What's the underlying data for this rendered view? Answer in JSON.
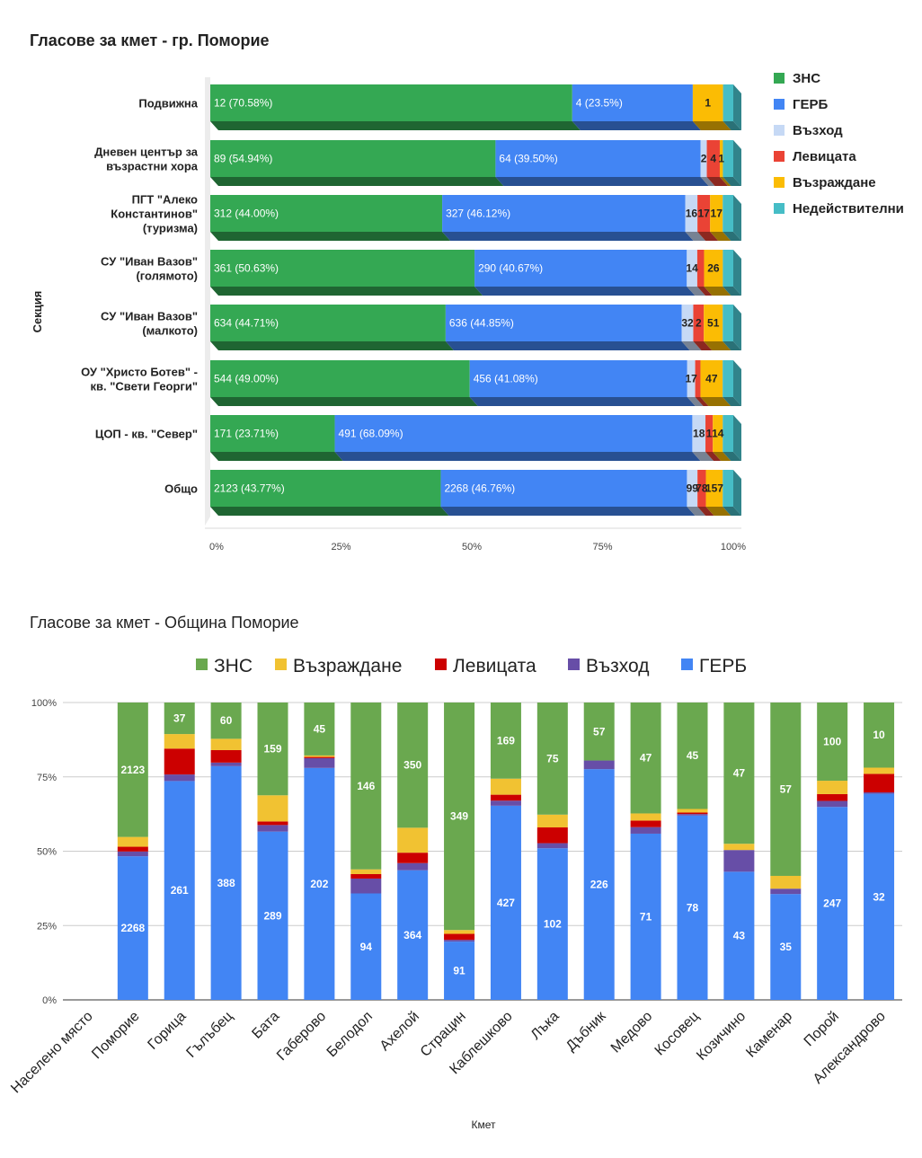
{
  "charts": {
    "top": {
      "title": "Гласове за кмет - гр. Поморие",
      "ylabel": "Секция"
    },
    "bottom": {
      "title": "Гласове за кмет - Община Поморие",
      "xlabel": "Кмет"
    }
  },
  "chart_data": [
    {
      "type": "bar",
      "orientation": "horizontal",
      "stacked": "percent",
      "effect": "3d",
      "title": "Гласове за кмет - гр. Поморие",
      "xlabel": "",
      "ylabel": "Секция",
      "xlim": [
        0,
        100
      ],
      "x_ticks": [
        "0%",
        "25%",
        "50%",
        "75%",
        "100%"
      ],
      "legend_position": "right",
      "categories": [
        [
          "Подвижна"
        ],
        [
          "Дневен център за",
          "възрастни хора"
        ],
        [
          "ПГТ \"Алеко",
          "Константинов\"",
          "(туризма)"
        ],
        [
          "СУ \"Иван Вазов\"",
          "(голямото)"
        ],
        [
          "СУ \"Иван Вазов\"",
          "(малкото)"
        ],
        [
          "ОУ \"Христо Ботев\" -",
          "кв. \"Свети Георги\""
        ],
        [
          "ЦОП - кв. \"Север\""
        ],
        [
          "Общо"
        ]
      ],
      "series": [
        {
          "name": "ЗНС",
          "color": "#34a853",
          "values": [
            70.58,
            54.94,
            44.0,
            50.63,
            44.71,
            49.0,
            23.71,
            43.77
          ],
          "labels": [
            "12  (70.58%)",
            "89 (54.94%)",
            "312 (44.00%)",
            "361 (50.63%)",
            "634 (44.71%)",
            "544 (49.00%)",
            "171 (23.71%)",
            "2123 (43.77%)"
          ]
        },
        {
          "name": "ГЕРБ",
          "color": "#4285f4",
          "values": [
            23.5,
            39.5,
            46.12,
            40.67,
            44.85,
            41.08,
            68.09,
            46.76
          ],
          "labels": [
            "4 (23.5%)",
            "64 (39.50%)",
            "327 (46.12%)",
            "290 (40.67%)",
            "636 (44.85%)",
            "456 (41.08%)",
            "491 (68.09%)",
            "2268 (46.76%)"
          ]
        },
        {
          "name": "Възход",
          "color": "#c6d9f5",
          "values": [
            0,
            1.2,
            2.3,
            2.0,
            2.2,
            1.5,
            2.5,
            2.0
          ],
          "labels": [
            "",
            "2",
            "16",
            "14",
            "32",
            "17",
            "18",
            "99"
          ]
        },
        {
          "name": "Левицата",
          "color": "#ea4335",
          "values": [
            0,
            2.5,
            2.4,
            1.3,
            2.0,
            1.0,
            1.4,
            1.6
          ],
          "labels": [
            "",
            "4",
            "17",
            "",
            "2",
            "",
            "1",
            "78"
          ]
        },
        {
          "name": "Възраждане",
          "color": "#fbbc04",
          "values": [
            5.9,
            0.6,
            2.4,
            3.6,
            3.6,
            4.2,
            1.9,
            3.2
          ],
          "labels": [
            "1",
            "1",
            "17",
            "26",
            "51",
            "47",
            "14",
            "157"
          ]
        },
        {
          "name": "Недействителни",
          "color": "#46bdc6",
          "values": [
            2.0,
            2.0,
            2.0,
            2.0,
            2.0,
            2.0,
            2.0,
            2.0
          ],
          "labels": [
            "",
            "",
            "",
            "",
            "",
            "",
            "",
            ""
          ]
        }
      ]
    },
    {
      "type": "bar",
      "orientation": "vertical",
      "stacked": "percent",
      "title": "Гласове за кмет - Община Поморие",
      "xlabel": "Кмет",
      "ylabel": "",
      "ylim": [
        0,
        100
      ],
      "y_ticks": [
        "0%",
        "25%",
        "50%",
        "75%",
        "100%"
      ],
      "legend_position": "top",
      "grid": true,
      "categories": [
        "Населено място",
        "Поморие",
        "Горица",
        "Гълъбец",
        "Бата",
        "Габерово",
        "Белодол",
        "Ахелой",
        "Страцин",
        "Каблешково",
        "Лъка",
        "Дъбник",
        "Медово",
        "Косовец",
        "Козичино",
        "Каменар",
        "Порой",
        "Александрово"
      ],
      "legend_order": [
        "ЗНС",
        "Възраждане",
        "Левицата",
        "Възход",
        "ГЕРБ"
      ],
      "series": [
        {
          "name": "ГЕРБ",
          "color": "#4285f4",
          "values": [
            0,
            48.3,
            73.6,
            78.6,
            56.6,
            78.0,
            35.8,
            43.6,
            19.6,
            65.3,
            51.0,
            77.6,
            55.9,
            62.0,
            43.1,
            35.6,
            64.9,
            69.3
          ],
          "labels": [
            "",
            "2268",
            "261",
            "388",
            "289",
            "202",
            "94",
            "364",
            "91",
            "427",
            "102",
            "226",
            "71",
            "78",
            "43",
            "35",
            "247",
            "32"
          ]
        },
        {
          "name": "Възход",
          "color": "#674ea7",
          "values": [
            0,
            1.6,
            2.2,
            1.2,
            2.2,
            3.3,
            5.0,
            2.4,
            0.6,
            1.7,
            1.7,
            2.9,
            2.2,
            0.5,
            7.3,
            1.8,
            2.0,
            0.5
          ]
        },
        {
          "name": "Левицата",
          "color": "#cc0000",
          "values": [
            0,
            1.6,
            8.7,
            4.2,
            1.2,
            0.4,
            1.5,
            3.5,
            2.0,
            2.0,
            5.3,
            0,
            2.2,
            0.5,
            0,
            0,
            2.3,
            6.2
          ]
        },
        {
          "name": "Възраждане",
          "color": "#f1c232",
          "values": [
            0,
            3.3,
            4.9,
            3.8,
            8.8,
            0.5,
            1.6,
            8.4,
            1.3,
            5.4,
            4.3,
            0,
            2.4,
            1.2,
            2.1,
            4.3,
            4.5,
            2.1
          ]
        },
        {
          "name": "ЗНС",
          "color": "#6aa84f",
          "values": [
            0,
            45.2,
            10.6,
            12.2,
            31.2,
            17.8,
            56.1,
            42.1,
            76.5,
            25.6,
            37.7,
            19.5,
            37.3,
            35.8,
            47.5,
            58.3,
            26.3,
            21.9
          ],
          "labels": [
            "",
            "2123",
            "37",
            "60",
            "159",
            "45",
            "146",
            "350",
            "349",
            "169",
            "75",
            "57",
            "47",
            "45",
            "47",
            "57",
            "100",
            "10"
          ]
        }
      ]
    }
  ]
}
